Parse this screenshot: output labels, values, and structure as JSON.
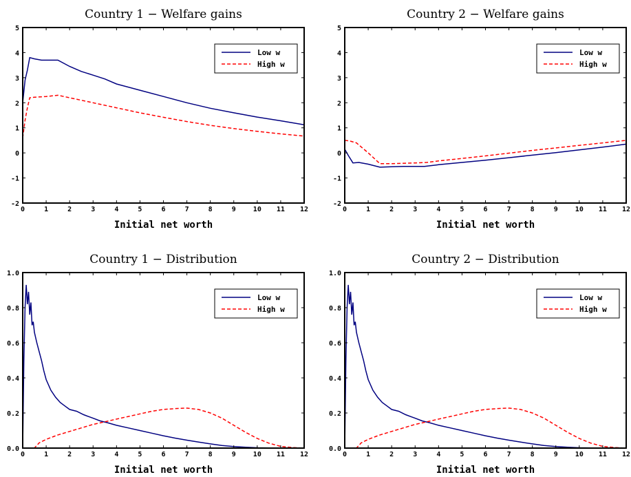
{
  "colors": {
    "low": "#000080",
    "high": "#ff0000",
    "axis": "#000000"
  },
  "chart_data": [
    {
      "type": "line",
      "title": "Country 1 − Welfare gains",
      "xlabel": "Initial net worth",
      "ylabel": "",
      "xlim": [
        0,
        12
      ],
      "ylim": [
        -2,
        5
      ],
      "xticks": [
        0,
        1,
        2,
        3,
        4,
        5,
        6,
        7,
        8,
        9,
        10,
        11,
        12
      ],
      "yticks": [
        -2,
        -1,
        0,
        1,
        2,
        3,
        4,
        5
      ],
      "yticklabels": [
        "-2",
        "-1",
        "0",
        "1",
        "2",
        "3",
        "4",
        "5"
      ],
      "legend_position": "top-right",
      "grid": false,
      "series": [
        {
          "name": "Low w",
          "style": "solid",
          "x": [
            0,
            0.1,
            0.2,
            0.3,
            0.5,
            0.8,
            1.0,
            1.5,
            2.0,
            2.5,
            3.0,
            3.5,
            4.0,
            5.0,
            6.0,
            7.0,
            8.0,
            9.0,
            10.0,
            11.0,
            12.0
          ],
          "y": [
            2.0,
            2.9,
            3.3,
            3.8,
            3.75,
            3.7,
            3.7,
            3.7,
            3.45,
            3.25,
            3.1,
            2.95,
            2.75,
            2.5,
            2.25,
            2.0,
            1.78,
            1.6,
            1.43,
            1.28,
            1.12
          ]
        },
        {
          "name": "High w",
          "style": "dashed",
          "x": [
            0,
            0.1,
            0.2,
            0.3,
            0.5,
            1.0,
            1.5,
            2.0,
            3.0,
            4.0,
            5.0,
            6.0,
            7.0,
            8.0,
            9.0,
            10.0,
            11.0,
            12.0
          ],
          "y": [
            0.6,
            1.3,
            1.8,
            2.2,
            2.22,
            2.25,
            2.3,
            2.2,
            2.0,
            1.8,
            1.6,
            1.42,
            1.25,
            1.1,
            0.97,
            0.86,
            0.76,
            0.67
          ]
        }
      ]
    },
    {
      "type": "line",
      "title": "Country 2 − Welfare gains",
      "xlabel": "Initial net worth",
      "ylabel": "",
      "xlim": [
        0,
        12
      ],
      "ylim": [
        -2,
        5
      ],
      "xticks": [
        0,
        1,
        2,
        3,
        4,
        5,
        6,
        7,
        8,
        9,
        10,
        11,
        12
      ],
      "yticks": [
        -2,
        -1,
        0,
        1,
        2,
        3,
        4,
        5
      ],
      "yticklabels": [
        "-2",
        "-1",
        "0",
        "1",
        "2",
        "3",
        "4",
        "5"
      ],
      "legend_position": "top-right",
      "grid": false,
      "series": [
        {
          "name": "Low w",
          "style": "solid",
          "x": [
            0,
            0.15,
            0.35,
            0.6,
            1.0,
            1.5,
            2.0,
            2.5,
            3.0,
            3.4,
            4.0,
            5.0,
            6.0,
            7.0,
            8.0,
            9.0,
            10.0,
            11.0,
            12.0
          ],
          "y": [
            0.15,
            -0.1,
            -0.4,
            -0.38,
            -0.45,
            -0.57,
            -0.55,
            -0.54,
            -0.54,
            -0.54,
            -0.47,
            -0.38,
            -0.29,
            -0.19,
            -0.09,
            0.01,
            0.12,
            0.23,
            0.35
          ]
        },
        {
          "name": "High w",
          "style": "dashed",
          "x": [
            0,
            0.2,
            0.5,
            1.0,
            1.5,
            2.0,
            3.0,
            3.5,
            4.0,
            5.0,
            6.0,
            7.0,
            8.0,
            9.0,
            10.0,
            11.0,
            12.0
          ],
          "y": [
            0.5,
            0.48,
            0.4,
            0.0,
            -0.43,
            -0.43,
            -0.4,
            -0.38,
            -0.32,
            -0.22,
            -0.12,
            -0.01,
            0.1,
            0.2,
            0.3,
            0.4,
            0.5
          ]
        }
      ]
    },
    {
      "type": "line",
      "title": "Country 1 − Distribution",
      "xlabel": "Initial net worth",
      "ylabel": "",
      "xlim": [
        0,
        12
      ],
      "ylim": [
        0,
        1
      ],
      "xticks": [
        0,
        1,
        2,
        3,
        4,
        5,
        6,
        7,
        8,
        9,
        10,
        11,
        12
      ],
      "yticks": [
        0,
        0.2,
        0.4,
        0.6,
        0.8,
        1.0
      ],
      "yticklabels": [
        "0.0",
        "0.2",
        "0.4",
        "0.6",
        "0.8",
        "1.0"
      ],
      "legend_position": "top-right",
      "grid": false,
      "series": [
        {
          "name": "Low w",
          "style": "solid",
          "x": [
            0,
            0.05,
            0.1,
            0.15,
            0.2,
            0.25,
            0.3,
            0.35,
            0.4,
            0.45,
            0.5,
            0.6,
            0.7,
            0.8,
            0.9,
            1.0,
            1.2,
            1.4,
            1.6,
            1.8,
            2.0,
            2.3,
            2.6,
            2.8,
            3.0,
            3.3,
            3.6,
            4.0,
            4.5,
            5.0,
            5.5,
            6.0,
            6.5,
            7.0,
            7.5,
            8.0,
            8.5,
            9.0,
            9.5,
            10.0,
            10.5,
            11.0,
            12.0
          ],
          "y": [
            0.0,
            0.5,
            0.8,
            0.93,
            0.82,
            0.89,
            0.76,
            0.83,
            0.7,
            0.72,
            0.66,
            0.6,
            0.55,
            0.5,
            0.44,
            0.39,
            0.33,
            0.29,
            0.26,
            0.24,
            0.22,
            0.21,
            0.19,
            0.18,
            0.17,
            0.155,
            0.145,
            0.13,
            0.115,
            0.1,
            0.085,
            0.07,
            0.057,
            0.045,
            0.034,
            0.024,
            0.015,
            0.009,
            0.005,
            0.002,
            0.001,
            0.0,
            0.0
          ]
        },
        {
          "name": "High w",
          "style": "dashed",
          "x": [
            0,
            0.5,
            0.7,
            1.0,
            1.5,
            2.0,
            2.5,
            3.0,
            3.5,
            4.0,
            4.5,
            5.0,
            5.5,
            6.0,
            6.5,
            7.0,
            7.5,
            8.0,
            8.5,
            9.0,
            9.5,
            10.0,
            10.5,
            11.0,
            11.5,
            12.0
          ],
          "y": [
            0.0,
            0.0,
            0.03,
            0.05,
            0.075,
            0.095,
            0.115,
            0.135,
            0.15,
            0.165,
            0.18,
            0.195,
            0.21,
            0.22,
            0.225,
            0.228,
            0.22,
            0.2,
            0.17,
            0.13,
            0.09,
            0.055,
            0.028,
            0.01,
            0.003,
            0.0
          ]
        }
      ]
    },
    {
      "type": "line",
      "title": "Country 2 − Distribution",
      "xlabel": "Initial net worth",
      "ylabel": "",
      "xlim": [
        0,
        12
      ],
      "ylim": [
        0,
        1
      ],
      "xticks": [
        0,
        1,
        2,
        3,
        4,
        5,
        6,
        7,
        8,
        9,
        10,
        11,
        12
      ],
      "yticks": [
        0,
        0.2,
        0.4,
        0.6,
        0.8,
        1.0
      ],
      "yticklabels": [
        "0.0",
        "0.2",
        "0.4",
        "0.6",
        "0.8",
        "1.0"
      ],
      "legend_position": "top-right",
      "grid": false,
      "series": [
        {
          "name": "Low w",
          "style": "solid",
          "x": [
            0,
            0.05,
            0.1,
            0.15,
            0.2,
            0.25,
            0.3,
            0.35,
            0.4,
            0.45,
            0.5,
            0.6,
            0.7,
            0.8,
            0.9,
            1.0,
            1.2,
            1.4,
            1.6,
            1.8,
            2.0,
            2.3,
            2.6,
            2.8,
            3.0,
            3.3,
            3.6,
            4.0,
            4.5,
            5.0,
            5.5,
            6.0,
            6.5,
            7.0,
            7.5,
            8.0,
            8.5,
            9.0,
            9.5,
            10.0,
            10.5,
            11.0,
            12.0
          ],
          "y": [
            0.0,
            0.5,
            0.8,
            0.93,
            0.82,
            0.89,
            0.76,
            0.83,
            0.7,
            0.72,
            0.66,
            0.6,
            0.55,
            0.5,
            0.44,
            0.39,
            0.33,
            0.29,
            0.26,
            0.24,
            0.22,
            0.21,
            0.19,
            0.18,
            0.17,
            0.155,
            0.145,
            0.13,
            0.115,
            0.1,
            0.085,
            0.07,
            0.057,
            0.045,
            0.034,
            0.024,
            0.015,
            0.009,
            0.005,
            0.002,
            0.001,
            0.0,
            0.0
          ]
        },
        {
          "name": "High w",
          "style": "dashed",
          "x": [
            0,
            0.5,
            0.7,
            1.0,
            1.5,
            2.0,
            2.5,
            3.0,
            3.5,
            4.0,
            4.5,
            5.0,
            5.5,
            6.0,
            6.5,
            7.0,
            7.5,
            8.0,
            8.5,
            9.0,
            9.5,
            10.0,
            10.5,
            11.0,
            11.5,
            12.0
          ],
          "y": [
            0.0,
            0.0,
            0.03,
            0.05,
            0.075,
            0.095,
            0.115,
            0.135,
            0.15,
            0.165,
            0.18,
            0.195,
            0.21,
            0.22,
            0.225,
            0.228,
            0.22,
            0.2,
            0.17,
            0.13,
            0.09,
            0.055,
            0.028,
            0.01,
            0.003,
            0.0
          ]
        }
      ]
    }
  ]
}
